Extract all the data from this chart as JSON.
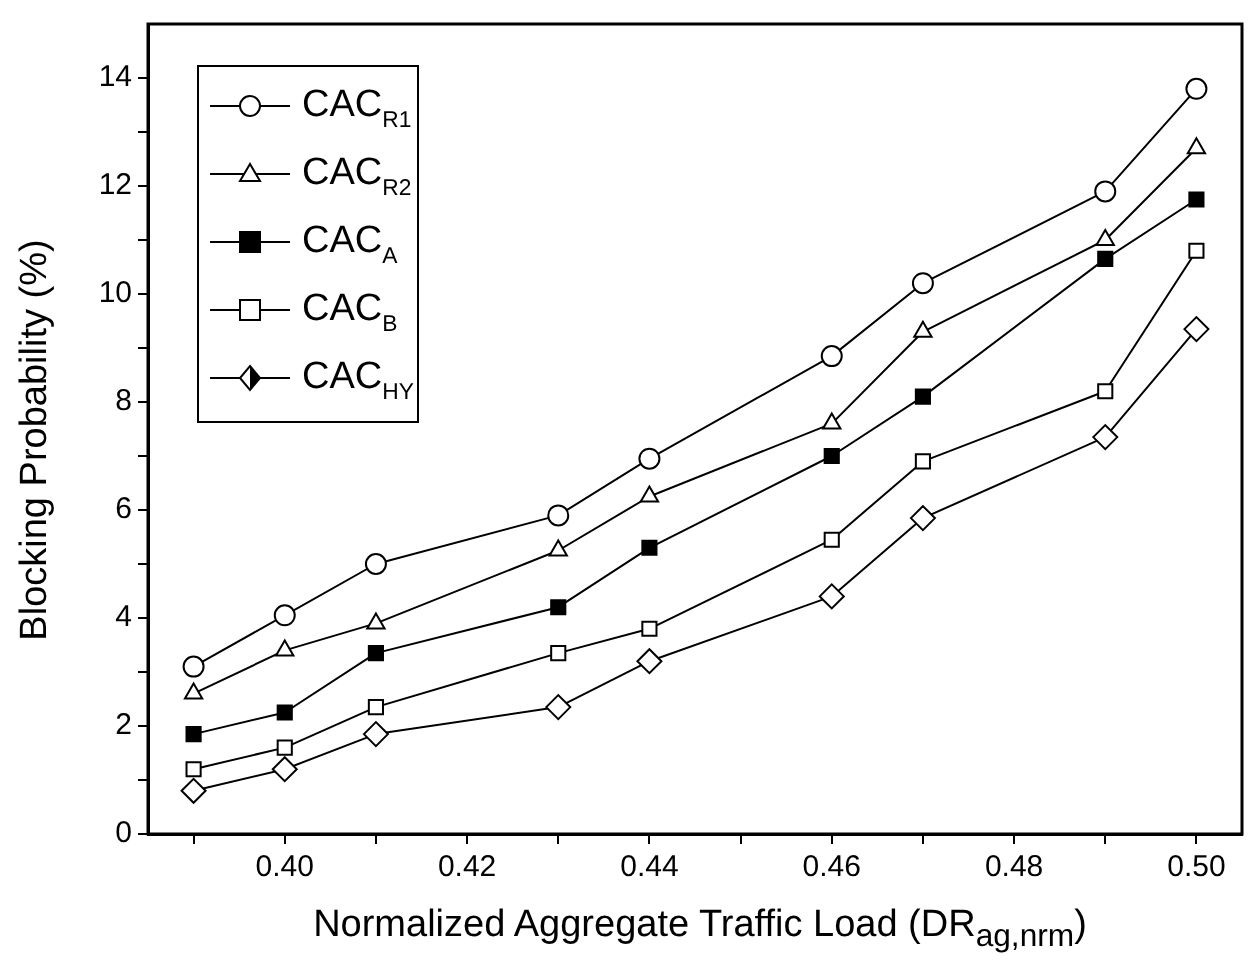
{
  "chart_data": {
    "type": "line",
    "xlabel": "Normalized Aggregate Traffic Load (DR$_{ag,nrm}$)",
    "ylabel": "Blocking Probability (%)",
    "x": [
      0.39,
      0.4,
      0.41,
      0.43,
      0.44,
      0.46,
      0.47,
      0.49,
      0.5
    ],
    "xlim": [
      0.385,
      0.505
    ],
    "ylim": [
      0,
      15
    ],
    "xticks": [
      {
        "value": 0.39,
        "label": null
      },
      {
        "value": 0.4,
        "label": "0.40"
      },
      {
        "value": 0.41,
        "label": null
      },
      {
        "value": 0.42,
        "label": "0.42"
      },
      {
        "value": 0.43,
        "label": null
      },
      {
        "value": 0.44,
        "label": "0.44"
      },
      {
        "value": 0.45,
        "label": null
      },
      {
        "value": 0.46,
        "label": "0.46"
      },
      {
        "value": 0.47,
        "label": null
      },
      {
        "value": 0.48,
        "label": "0.48"
      },
      {
        "value": 0.49,
        "label": null
      },
      {
        "value": 0.5,
        "label": "0.50"
      }
    ],
    "yticks": [
      0,
      {
        "value": 1,
        "label": null
      },
      2,
      {
        "value": 3,
        "label": null
      },
      4,
      {
        "value": 5,
        "label": null
      },
      6,
      {
        "value": 7,
        "label": null
      },
      8,
      {
        "value": 9,
        "label": null
      },
      10,
      {
        "value": 11,
        "label": null
      },
      12,
      {
        "value": 13,
        "label": null
      },
      14
    ],
    "grid": false,
    "legend": "top left",
    "line_style": "solid",
    "series": [
      {
        "name": "CAC$_{R1}$",
        "color": "#000000",
        "marker": "circle",
        "values": [
          3.1,
          4.05,
          5.0,
          5.9,
          6.95,
          8.85,
          10.2,
          11.9,
          13.8
        ]
      },
      {
        "name": "CAC$_{R2}$",
        "color": "#000000",
        "marker": "triangle",
        "values": [
          2.6,
          3.4,
          3.9,
          5.25,
          6.25,
          7.6,
          9.3,
          11.0,
          12.7
        ]
      },
      {
        "name": "CAC$_{A}$",
        "color": "#000000",
        "marker": "square",
        "values": [
          1.85,
          2.25,
          3.35,
          4.2,
          5.3,
          7.0,
          8.1,
          10.65,
          11.75
        ]
      },
      {
        "name": "CAC$_{B}$",
        "color": "#000000",
        "marker": "square",
        "values": [
          1.2,
          1.6,
          2.35,
          3.35,
          3.8,
          5.45,
          6.9,
          8.2,
          10.8
        ]
      },
      {
        "name": "CAC$_{HY}$",
        "color": "#000000",
        "marker": "diamond",
        "values": [
          0.8,
          1.2,
          1.85,
          2.35,
          3.2,
          4.4,
          5.85,
          7.35,
          9.35
        ]
      }
    ]
  }
}
